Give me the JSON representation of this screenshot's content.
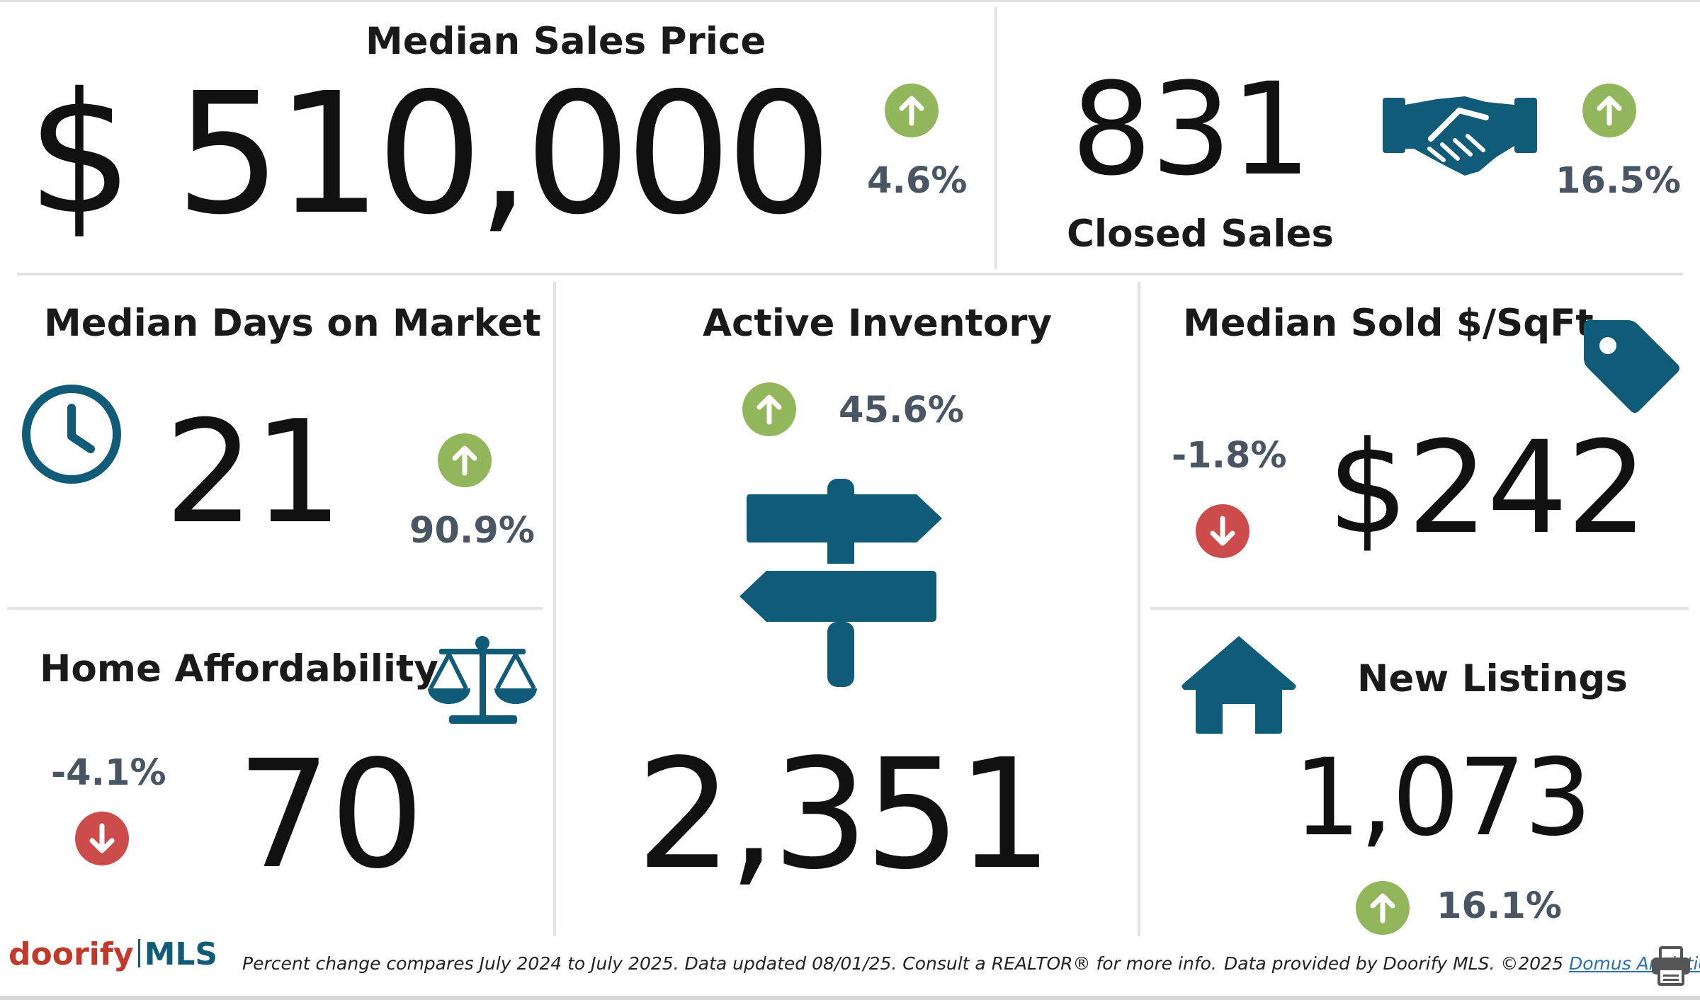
{
  "colors": {
    "teal": "#0f5b78",
    "up_green": "#92b65b",
    "down_red": "#cc4b4b",
    "pct_gray": "#4a5563"
  },
  "median_sales_price": {
    "title": "Median Sales Price",
    "value": "$ 510,000",
    "change": "4.6%",
    "direction": "up",
    "icon": "dollar-icon"
  },
  "closed_sales": {
    "title": "Closed Sales",
    "value": "831",
    "change": "16.5%",
    "direction": "up",
    "icon": "handshake-icon"
  },
  "median_days_on_market": {
    "title": "Median Days on Market",
    "value": "21",
    "change": "90.9%",
    "direction": "up",
    "icon": "clock-icon"
  },
  "active_inventory": {
    "title": "Active Inventory",
    "value": "2,351",
    "change": "45.6%",
    "direction": "up",
    "icon": "signpost-icon"
  },
  "median_sold_per_sqft": {
    "title": "Median Sold $/SqFt",
    "value": "$242",
    "change": "-1.8%",
    "direction": "down",
    "icon": "price-tag-icon"
  },
  "home_affordability": {
    "title": "Home Affordability",
    "value": "70",
    "change": "-4.1%",
    "direction": "down",
    "icon": "scales-icon"
  },
  "new_listings": {
    "title": "New Listings",
    "value": "1,073",
    "change": "16.1%",
    "direction": "up",
    "icon": "house-icon"
  },
  "footer": {
    "logo_left": "doorify",
    "logo_right": "MLS",
    "note": "Percent change compares July 2024 to July 2025.  Data updated 08/01/25.  Consult a REALTOR® for more info.",
    "credit": "Data provided by Doorify MLS. ©2025 ",
    "credit_link": "Domus Analytics®",
    "print_icon": "printer-icon"
  }
}
